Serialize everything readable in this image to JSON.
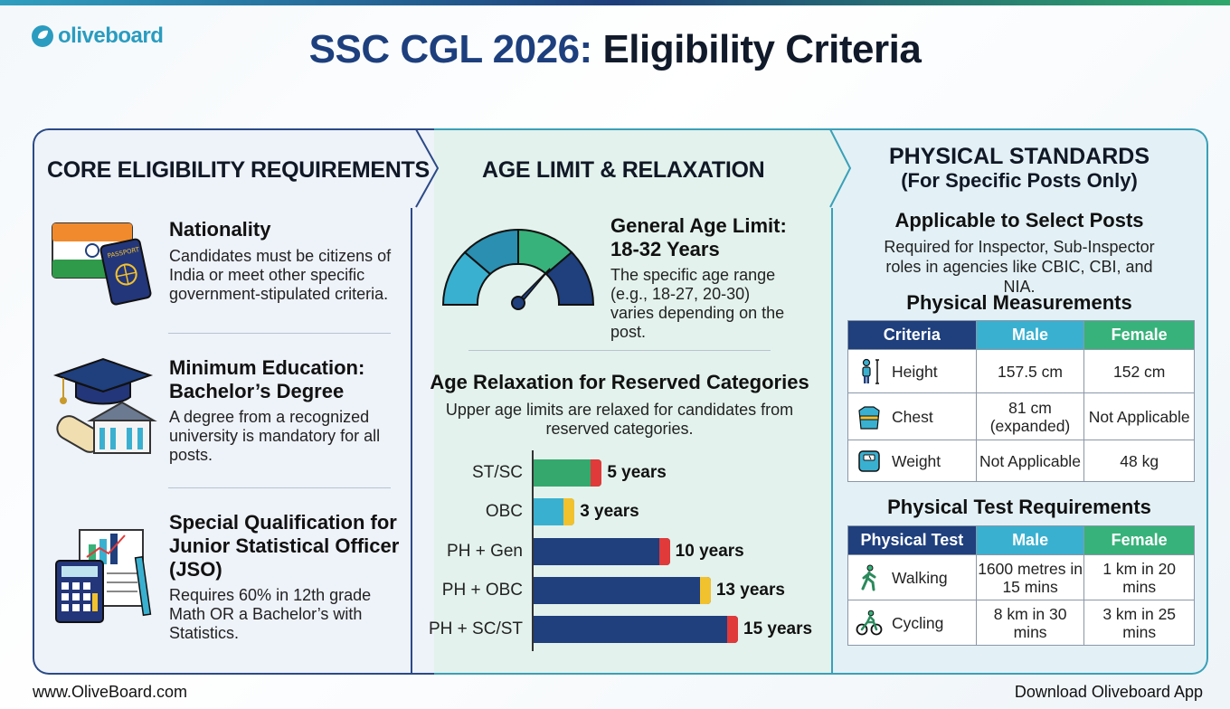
{
  "brand": {
    "logo_text": "oliveboard"
  },
  "title": {
    "accent": "SSC CGL 2026:",
    "rest": "Eligibility Criteria"
  },
  "core": {
    "heading": "CORE ELIGIBILITY REQUIREMENTS",
    "items": [
      {
        "title": "Nationality",
        "text": "Candidates must be citizens of India or meet other specific government-stipulated criteria."
      },
      {
        "title": "Minimum Education: Bachelor’s Degree",
        "text": "A degree from a recognized university is mandatory for all posts."
      },
      {
        "title": "Special Qualification for Junior Statistical Officer (JSO)",
        "text": "Requires 60% in 12th grade Math OR a Bachelor’s with Statistics."
      }
    ],
    "passport_label": "PASSPORT"
  },
  "age": {
    "heading": "AGE LIMIT & RELAXATION",
    "general_title": "General Age Limit: 18-32 Years",
    "general_text": "The specific age range (e.g., 18-27, 20-30) varies depending on the post.",
    "relax_title": "Age Relaxation for Reserved Categories",
    "relax_text": "Upper age limits are relaxed for candidates from reserved categories."
  },
  "chart_data": {
    "type": "bar",
    "orientation": "horizontal",
    "title": "Age Relaxation for Reserved Categories",
    "categories": [
      "ST/SC",
      "OBC",
      "PH + Gen",
      "PH + OBC",
      "PH + SC/ST"
    ],
    "values": [
      5,
      3,
      10,
      13,
      15
    ],
    "value_labels": [
      "5 years",
      "3 years",
      "10 years",
      "13 years",
      "15 years"
    ],
    "unit": "years",
    "xlim": [
      0,
      15
    ],
    "colors": [
      "#35a86e",
      "#3ab0d0",
      "#1f3f7d",
      "#1f3f7d",
      "#1f3f7d"
    ],
    "tip_colors": [
      "#e03a3a",
      "#f2c12e",
      "#e03a3a",
      "#f2c12e",
      "#e03a3a"
    ]
  },
  "physical": {
    "heading_line1": "PHYSICAL STANDARDS",
    "heading_line2": "(For Specific Posts Only)",
    "applicable_title": "Applicable to Select Posts",
    "applicable_text": "Required for Inspector, Sub-Inspector roles in agencies like CBIC, CBI, and NIA.",
    "measure_title": "Physical Measurements",
    "measure_headers": [
      "Criteria",
      "Male",
      "Female"
    ],
    "measure_rows": [
      {
        "icon": "height-icon",
        "criteria": "Height",
        "male": "157.5 cm",
        "female": "152 cm"
      },
      {
        "icon": "chest-icon",
        "criteria": "Chest",
        "male": "81 cm (expanded)",
        "female": "Not Applicable"
      },
      {
        "icon": "weight-scale-icon",
        "criteria": "Weight",
        "male": "Not Applicable",
        "female": "48 kg"
      }
    ],
    "test_title": "Physical Test Requirements",
    "test_headers": [
      "Physical Test",
      "Male",
      "Female"
    ],
    "test_rows": [
      {
        "icon": "walking-icon",
        "criteria": "Walking",
        "male": "1600 metres in 15 mins",
        "female": "1 km in 20 mins"
      },
      {
        "icon": "cycling-icon",
        "criteria": "Cycling",
        "male": "8 km in 30 mins",
        "female": "3 km in 25 mins"
      }
    ]
  },
  "colors": {
    "navy": "#1f3f7d",
    "teal": "#3ab0d0",
    "green": "#37b27a",
    "red": "#e03a3a",
    "yellow": "#f2c12e"
  },
  "footer": {
    "left": "www.OliveBoard.com",
    "right": "Download Oliveboard App"
  }
}
